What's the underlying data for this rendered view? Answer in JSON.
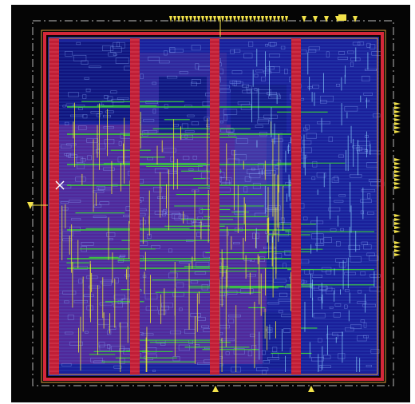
{
  "diagram": {
    "kind": "chip-layout",
    "colors": {
      "background": "#050505",
      "core_fill": "#1a1f9a",
      "placement_fill": "#5a2a9a",
      "power_ring": "#d4283a",
      "power_stripe": "#c01e36",
      "metal_vertical": "#e8e23a",
      "metal_horizontal": "#3ad23a",
      "cell_rows": "#4c8ce0",
      "io_pins": "#f2e24a",
      "boundary": "#9a9a9a",
      "cursor": "#ffffff"
    },
    "power_stripes_count": 4,
    "io_pin_groups": [
      {
        "edge": "top",
        "group": "top-bus"
      },
      {
        "edge": "top",
        "group": "top-right"
      },
      {
        "edge": "right",
        "group": "right-bus"
      },
      {
        "edge": "left",
        "group": "left-pin"
      },
      {
        "edge": "bottom",
        "group": "bottom-pins"
      }
    ]
  }
}
